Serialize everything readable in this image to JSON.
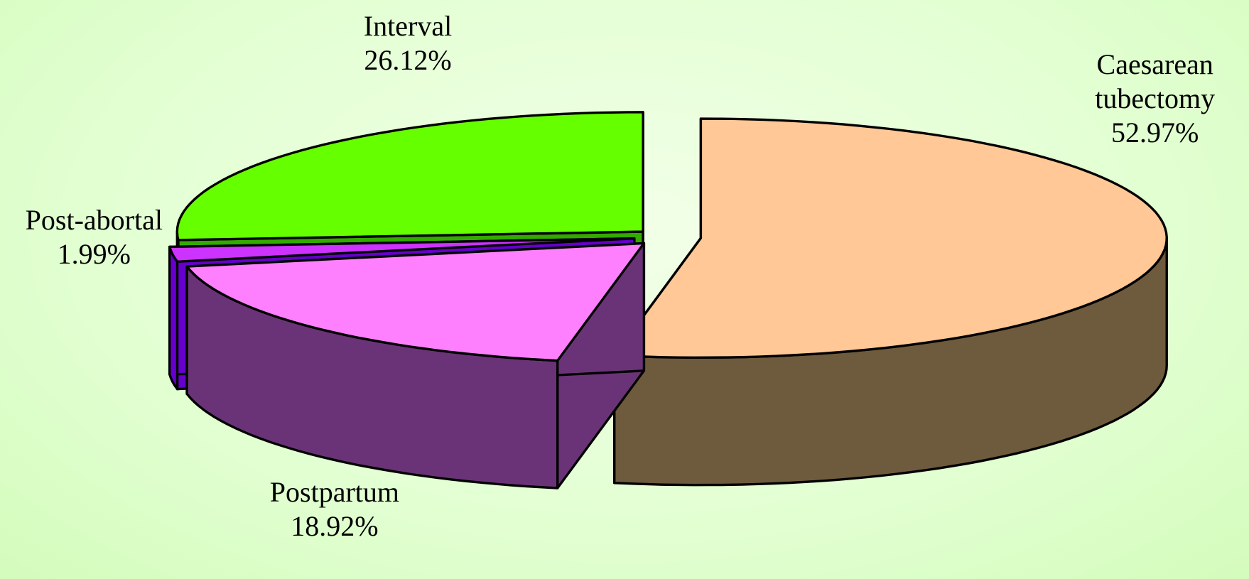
{
  "chart_data": {
    "type": "pie",
    "categories": [
      "Caesarean tubectomy",
      "Postpartum",
      "Post-abortal",
      "Interval"
    ],
    "values": [
      52.97,
      18.92,
      1.99,
      26.12
    ],
    "value_labels": [
      "52.97%",
      "18.92%",
      "1.99%",
      "26.12%"
    ],
    "colors": [
      "#FFC896",
      "#FF80FF",
      "#CC33FF",
      "#66FF00"
    ],
    "side_colors": [
      "#6E5A3C",
      "#6B3377",
      "#6600CC",
      "#33AA00"
    ]
  }
}
